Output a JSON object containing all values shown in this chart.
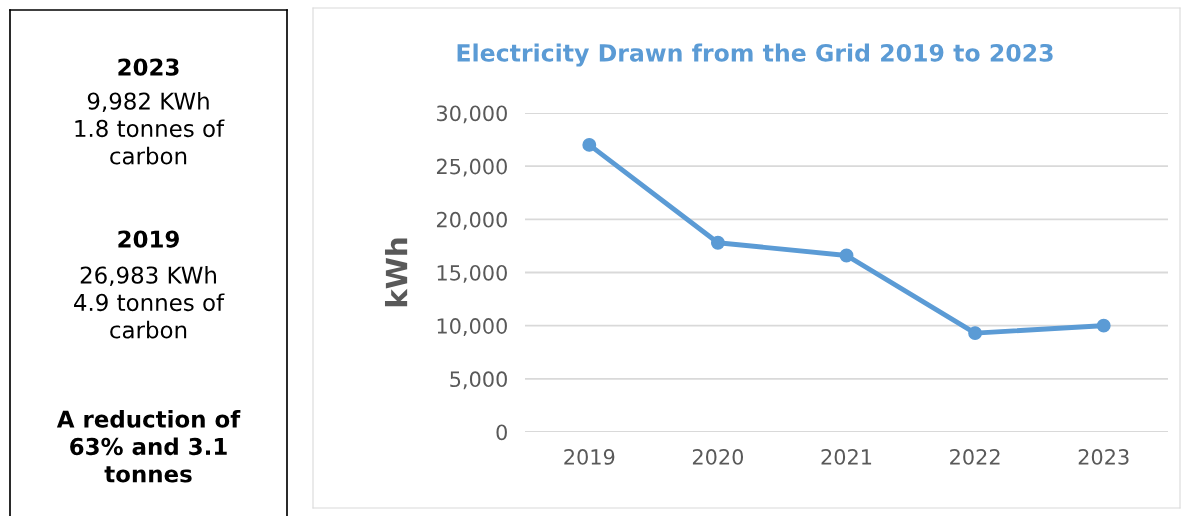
{
  "chart_data": [
    {
      "type": "other",
      "annotations": [
        "2023",
        "9,982 KWh\n1.8 tonnes of\ncarbon",
        "2019",
        "26,983 KWh\n4.9 tonnes of\ncarbon",
        "A reduction of\n63% and 3.1\ntonnes"
      ]
    },
    {
      "type": "line",
      "title": "Electricity Drawn from the Grid 2019 to 2023",
      "ylabel": "kWh",
      "categories": [
        "2019",
        "2020",
        "2021",
        "2022",
        "2023"
      ],
      "series": [
        {
          "color": "#5b9bd5",
          "values": [
            27000,
            17800,
            16600,
            9300,
            10000
          ]
        }
      ],
      "ylim": [
        0,
        30000
      ],
      "yticks": [
        {
          "value": 0,
          "label": "0"
        },
        {
          "value": 5000,
          "label": "5,000"
        },
        {
          "value": 10000,
          "label": "10,000"
        },
        {
          "value": 15000,
          "label": "15,000"
        },
        {
          "value": 20000,
          "label": "20,000"
        },
        {
          "value": 25000,
          "label": "25,000"
        },
        {
          "value": 30000,
          "label": "30,000"
        }
      ],
      "grid": "y",
      "marker": "circle",
      "line_style": "solid"
    }
  ]
}
